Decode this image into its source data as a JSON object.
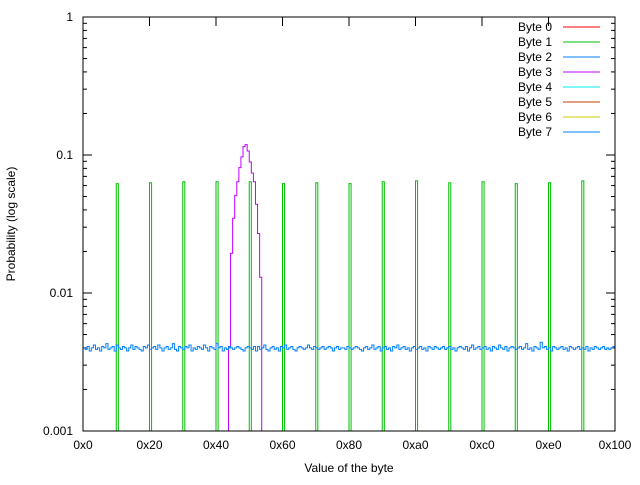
{
  "chart_data": {
    "type": "line",
    "subtype": "histogram-steps",
    "title": "",
    "xlabel": "Value of the byte",
    "ylabel": "Probability (log scale)",
    "xlim": [
      0,
      256
    ],
    "ylim": [
      0.001,
      1
    ],
    "yscale": "log",
    "grid": false,
    "legend_position": "top-right",
    "x_ticks": [
      {
        "value": 0,
        "label": "0x0"
      },
      {
        "value": 32,
        "label": "0x20"
      },
      {
        "value": 64,
        "label": "0x40"
      },
      {
        "value": 96,
        "label": "0x60"
      },
      {
        "value": 128,
        "label": "0x80"
      },
      {
        "value": 160,
        "label": "0xa0"
      },
      {
        "value": 192,
        "label": "0xc0"
      },
      {
        "value": 224,
        "label": "0xe0"
      },
      {
        "value": 256,
        "label": "0x100"
      }
    ],
    "y_ticks": [
      {
        "value": 1,
        "label": "1"
      },
      {
        "value": 0.1,
        "label": "0.1"
      },
      {
        "value": 0.01,
        "label": "0.01"
      },
      {
        "value": 0.001,
        "label": "0.001"
      }
    ],
    "series": [
      {
        "name": "Byte 0",
        "color": "#ff0000",
        "points": []
      },
      {
        "name": "Byte 1",
        "color": "#00c000",
        "points": [
          [
            16,
            0.062
          ],
          [
            32,
            0.063
          ],
          [
            48,
            0.064
          ],
          [
            64,
            0.064
          ],
          [
            80,
            0.064
          ],
          [
            96,
            0.062
          ],
          [
            112,
            0.063
          ],
          [
            128,
            0.062
          ],
          [
            144,
            0.064
          ],
          [
            160,
            0.065
          ],
          [
            176,
            0.063
          ],
          [
            192,
            0.064
          ],
          [
            208,
            0.062
          ],
          [
            224,
            0.063
          ],
          [
            240,
            0.065
          ]
        ]
      },
      {
        "name": "Byte 2",
        "color": "#0080ff",
        "points": []
      },
      {
        "name": "Byte 3",
        "color": "#c000ff",
        "points": [
          [
            70,
            0.004
          ],
          [
            71,
            0.0194
          ],
          [
            72,
            0.0348
          ],
          [
            73,
            0.051
          ],
          [
            74,
            0.064
          ],
          [
            75,
            0.081
          ],
          [
            76,
            0.097
          ],
          [
            77,
            0.115
          ],
          [
            78,
            0.119
          ],
          [
            79,
            0.107
          ],
          [
            80,
            0.089
          ],
          [
            81,
            0.074
          ],
          [
            82,
            0.064
          ],
          [
            83,
            0.044
          ],
          [
            84,
            0.027
          ],
          [
            85,
            0.013
          ]
        ]
      },
      {
        "name": "Byte 4",
        "color": "#00eeee",
        "points": []
      },
      {
        "name": "Byte 5",
        "color": "#c04000",
        "points": []
      },
      {
        "name": "Byte 6",
        "color": "#c8c800",
        "points": []
      },
      {
        "name": "Byte 7",
        "color": "#0080ff",
        "values": [
          0.004,
          0.0039,
          0.0041,
          0.0038,
          0.004,
          0.0042,
          0.0039,
          0.004,
          0.0038,
          0.0041,
          0.004,
          0.0043,
          0.0039,
          0.004,
          0.0041,
          0.0038,
          0.0042,
          0.004,
          0.0039,
          0.0041,
          0.004,
          0.0038,
          0.004,
          0.0042,
          0.0039,
          0.0041,
          0.004,
          0.0039,
          0.0038,
          0.0041,
          0.004,
          0.0042,
          0.0039,
          0.004,
          0.0041,
          0.0039,
          0.0042,
          0.004,
          0.0038,
          0.004,
          0.0041,
          0.0039,
          0.004,
          0.0043,
          0.0039,
          0.0038,
          0.0041,
          0.004,
          0.0039,
          0.0041,
          0.004,
          0.0042,
          0.0038,
          0.004,
          0.0039,
          0.0041,
          0.004,
          0.0039,
          0.0042,
          0.004,
          0.0038,
          0.0041,
          0.004,
          0.0039,
          0.0043,
          0.004,
          0.0041,
          0.0038,
          0.004,
          0.0039,
          0.0041,
          0.004,
          0.0039,
          0.004,
          0.0041,
          0.004,
          0.0039,
          0.0038,
          0.004,
          0.0041,
          0.004,
          0.0039,
          0.0041,
          0.0038,
          0.0041,
          0.0039,
          0.004,
          0.0042,
          0.0039,
          0.0038,
          0.004,
          0.0041,
          0.0039,
          0.004,
          0.0038,
          0.0041,
          0.004,
          0.0042,
          0.0039,
          0.004,
          0.0041,
          0.0039,
          0.0038,
          0.004,
          0.0041,
          0.004,
          0.0039,
          0.004,
          0.0042,
          0.004,
          0.0039,
          0.0041,
          0.004,
          0.0039,
          0.004,
          0.0041,
          0.0039,
          0.004,
          0.0041,
          0.004,
          0.0038,
          0.004,
          0.0041,
          0.0039,
          0.004,
          0.004,
          0.0039,
          0.0041,
          0.004,
          0.0039,
          0.004,
          0.0041,
          0.004,
          0.0039,
          0.0038,
          0.004,
          0.0041,
          0.0039,
          0.004,
          0.0042,
          0.0039,
          0.004,
          0.0041,
          0.0038,
          0.004,
          0.0041,
          0.0039,
          0.004,
          0.0038,
          0.0041,
          0.004,
          0.0042,
          0.0039,
          0.004,
          0.0041,
          0.0039,
          0.004,
          0.0038,
          0.004,
          0.0041,
          0.0039,
          0.004,
          0.0041,
          0.0039,
          0.004,
          0.0038,
          0.0041,
          0.004,
          0.0039,
          0.0041,
          0.004,
          0.0039,
          0.004,
          0.0041,
          0.0039,
          0.004,
          0.0041,
          0.0039,
          0.004,
          0.0038,
          0.004,
          0.0041,
          0.004,
          0.0039,
          0.0041,
          0.0038,
          0.004,
          0.0042,
          0.0039,
          0.004,
          0.0041,
          0.0039,
          0.004,
          0.0041,
          0.0039,
          0.004,
          0.0038,
          0.0041,
          0.004,
          0.0039,
          0.0042,
          0.004,
          0.0039,
          0.0041,
          0.0038,
          0.004,
          0.0041,
          0.004,
          0.0039,
          0.004,
          0.0041,
          0.0039,
          0.004,
          0.0043,
          0.0039,
          0.004,
          0.0038,
          0.0041,
          0.004,
          0.0039,
          0.0044,
          0.004,
          0.0041,
          0.0039,
          0.004,
          0.0038,
          0.0041,
          0.004,
          0.0039,
          0.004,
          0.0041,
          0.0039,
          0.004,
          0.0038,
          0.0041,
          0.004,
          0.0039,
          0.004,
          0.0041,
          0.0039,
          0.004,
          0.0039,
          0.0041,
          0.0038,
          0.004,
          0.0039,
          0.0041,
          0.004,
          0.0039,
          0.004,
          0.0041,
          0.0039,
          0.004,
          0.0039,
          0.004,
          0.0041
        ]
      }
    ]
  }
}
